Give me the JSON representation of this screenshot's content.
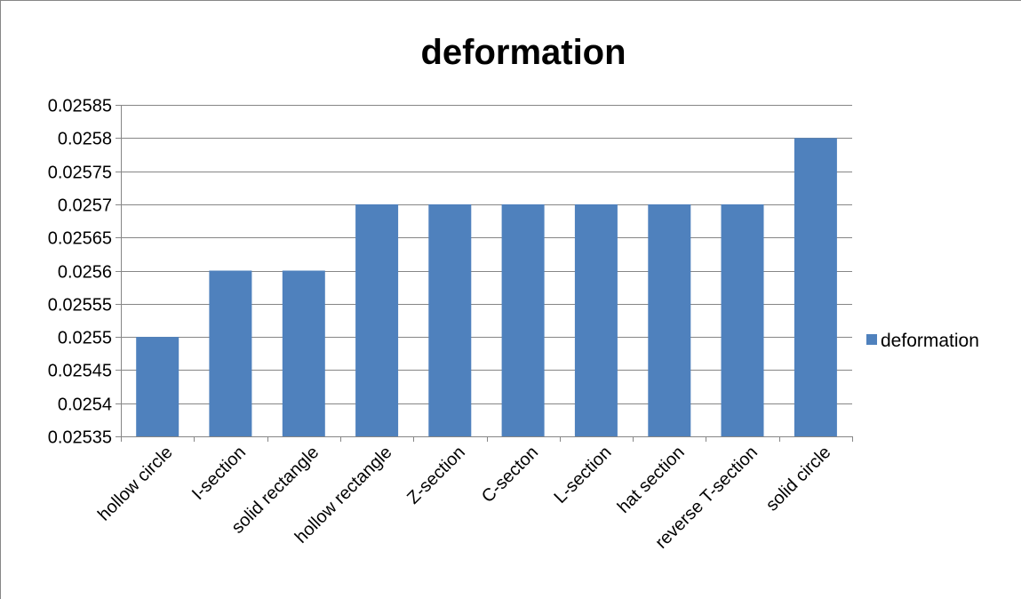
{
  "chart_data": {
    "type": "bar",
    "title": "deformation",
    "categories": [
      "hollow circle",
      "I-section",
      "solid rectangle",
      "hollow rectangle",
      "Z-section",
      "C-secton",
      "L-section",
      "hat section",
      "reverse T-section",
      "solid circle"
    ],
    "series": [
      {
        "name": "deformation",
        "values": [
          0.0255,
          0.0256,
          0.0256,
          0.0257,
          0.0257,
          0.0257,
          0.0257,
          0.0257,
          0.0257,
          0.0258
        ]
      }
    ],
    "yticks": [
      "0.02535",
      "0.0254",
      "0.02545",
      "0.0255",
      "0.02555",
      "0.0256",
      "0.02565",
      "0.0257",
      "0.02575",
      "0.0258",
      "0.02585"
    ],
    "ylim": [
      0.02535,
      0.02585
    ],
    "grid": true,
    "legend_position": "right",
    "colors": {
      "bar": "#4f81bd",
      "grid": "#868686",
      "axis": "#868686"
    }
  }
}
